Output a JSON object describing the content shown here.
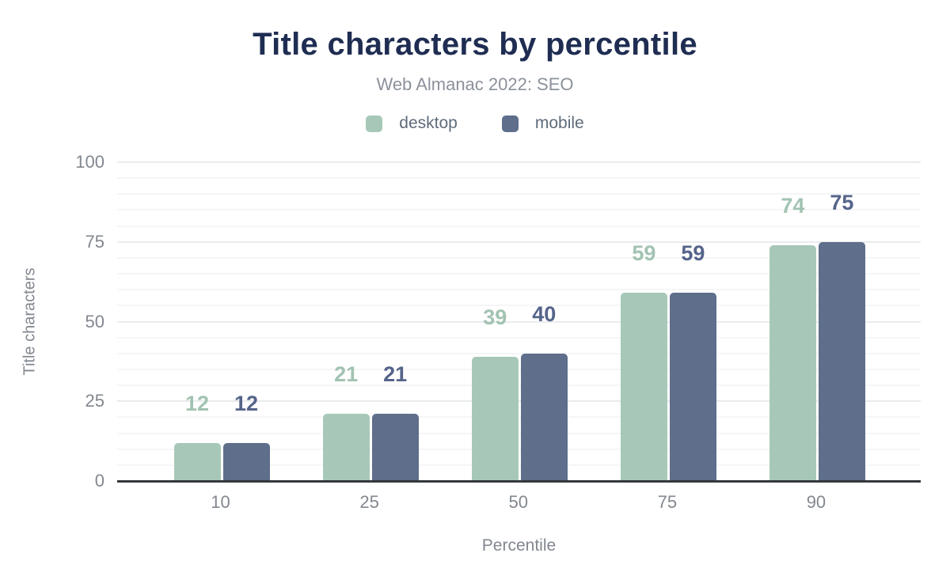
{
  "title": "Title characters by percentile",
  "subtitle": "Web Almanac 2022: SEO",
  "theme": {
    "title_color": "#1f2d52",
    "subtitle_color": "#8b919b",
    "axis_text_color": "#82878f",
    "axis_line_color": "#34373c",
    "major_grid_color": "#e9ebed",
    "minor_grid_color": "#f5f6f7",
    "background": "#ffffff"
  },
  "chart_data": {
    "type": "bar",
    "title": "Title characters by percentile",
    "subtitle": "Web Almanac 2022: SEO",
    "categories": [
      "10",
      "25",
      "50",
      "75",
      "90"
    ],
    "series": [
      {
        "name": "desktop",
        "color": "#a7c8b8",
        "label_color": "#a2c3b2",
        "values": [
          12,
          21,
          39,
          59,
          74
        ]
      },
      {
        "name": "mobile",
        "color": "#5e6e8b",
        "label_color": "#55648a",
        "values": [
          12,
          21,
          40,
          59,
          75
        ]
      }
    ],
    "xlabel": "Percentile",
    "ylabel": "Title characters",
    "ylim": [
      0,
      100
    ],
    "yticks": [
      0,
      25,
      50,
      75,
      100
    ],
    "minor_grid_step": 5,
    "grid": true,
    "legend_position": "top",
    "value_labels": true
  }
}
